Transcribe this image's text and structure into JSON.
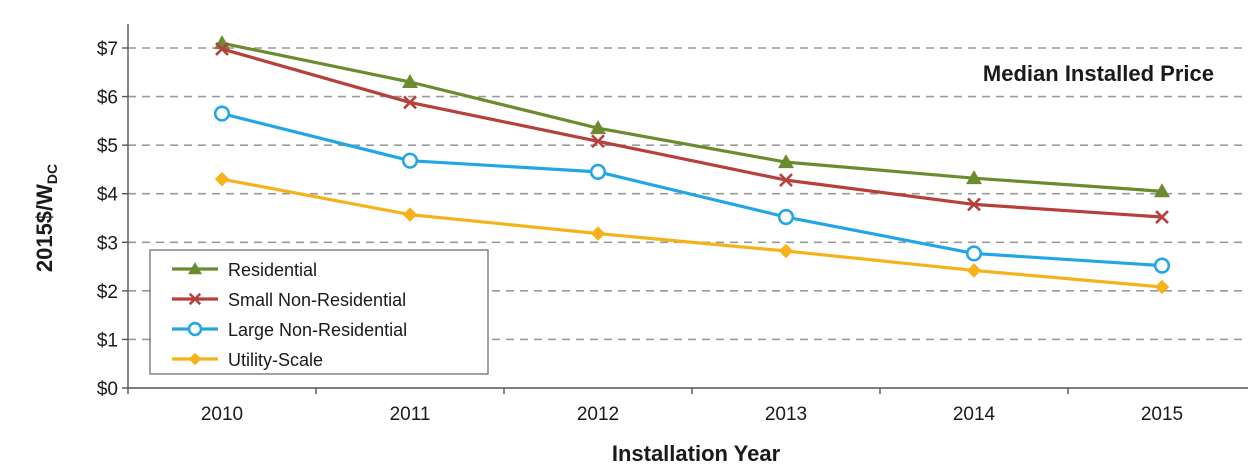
{
  "chart_data": {
    "type": "line",
    "title": "Median Installed Price",
    "xlabel": "Installation Year",
    "ylabel_main": "2015$/W",
    "ylabel_sub": "DC",
    "x": [
      2010,
      2011,
      2012,
      2013,
      2014,
      2015
    ],
    "x_tick_labels": [
      "2010",
      "2011",
      "2012",
      "2013",
      "2014",
      "2015"
    ],
    "ylim": [
      0,
      7
    ],
    "y_ticks": [
      0,
      1,
      2,
      3,
      4,
      5,
      6,
      7
    ],
    "y_tick_labels": [
      "$0",
      "$1",
      "$2",
      "$3",
      "$4",
      "$5",
      "$6",
      "$7"
    ],
    "grid": "horizontal-dashed",
    "legend_position": "bottom-left",
    "series": [
      {
        "name": "Residential",
        "color": "#6a8c2f",
        "marker": "triangle",
        "values": [
          7.1,
          6.3,
          5.35,
          4.65,
          4.32,
          4.05
        ]
      },
      {
        "name": "Small Non-Residential",
        "color": "#b5403c",
        "marker": "x",
        "values": [
          6.98,
          5.88,
          5.08,
          4.28,
          3.78,
          3.52
        ]
      },
      {
        "name": "Large Non-Residential",
        "color": "#23a6e6",
        "marker": "circle",
        "values": [
          5.65,
          4.68,
          4.45,
          3.52,
          2.77,
          2.52
        ]
      },
      {
        "name": "Utility-Scale",
        "color": "#f5b21b",
        "marker": "diamond",
        "values": [
          4.3,
          3.57,
          3.18,
          2.82,
          2.42,
          2.08
        ]
      }
    ]
  }
}
